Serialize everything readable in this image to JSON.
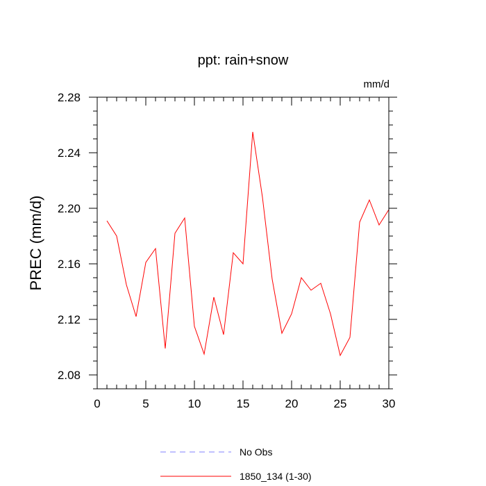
{
  "chart_data": {
    "type": "line",
    "title": "ppt: rain+snow",
    "units_label": "mm/d",
    "xlabel": "",
    "ylabel": "PREC  (mm/d)",
    "xlim": [
      0,
      30
    ],
    "ylim": [
      2.07,
      2.28
    ],
    "x_ticks": [
      0,
      5,
      10,
      15,
      20,
      25,
      30
    ],
    "x_tick_labels": [
      "0",
      "5",
      "10",
      "15",
      "20",
      "25",
      "30"
    ],
    "y_ticks": [
      2.08,
      2.12,
      2.16,
      2.2,
      2.24,
      2.28
    ],
    "y_tick_labels": [
      "2.08",
      "2.12",
      "2.16",
      "2.20",
      "2.24",
      "2.28"
    ],
    "grid": false,
    "legend_position": "bottom",
    "series": [
      {
        "name": "No Obs",
        "color": "#8080ff",
        "dash": "dashed",
        "x": [],
        "values": []
      },
      {
        "name": "1850_134 (1-30)",
        "color": "#ff0000",
        "dash": "solid",
        "x": [
          1,
          2,
          3,
          4,
          5,
          6,
          7,
          8,
          9,
          10,
          11,
          12,
          13,
          14,
          15,
          16,
          17,
          18,
          19,
          20,
          21,
          22,
          23,
          24,
          25,
          26,
          27,
          28,
          29,
          30
        ],
        "values": [
          2.191,
          2.18,
          2.145,
          2.122,
          2.161,
          2.171,
          2.099,
          2.182,
          2.193,
          2.115,
          2.095,
          2.136,
          2.109,
          2.168,
          2.16,
          2.255,
          2.208,
          2.149,
          2.11,
          2.124,
          2.15,
          2.141,
          2.146,
          2.124,
          2.094,
          2.107,
          2.19,
          2.206,
          2.188,
          2.199
        ]
      }
    ]
  }
}
